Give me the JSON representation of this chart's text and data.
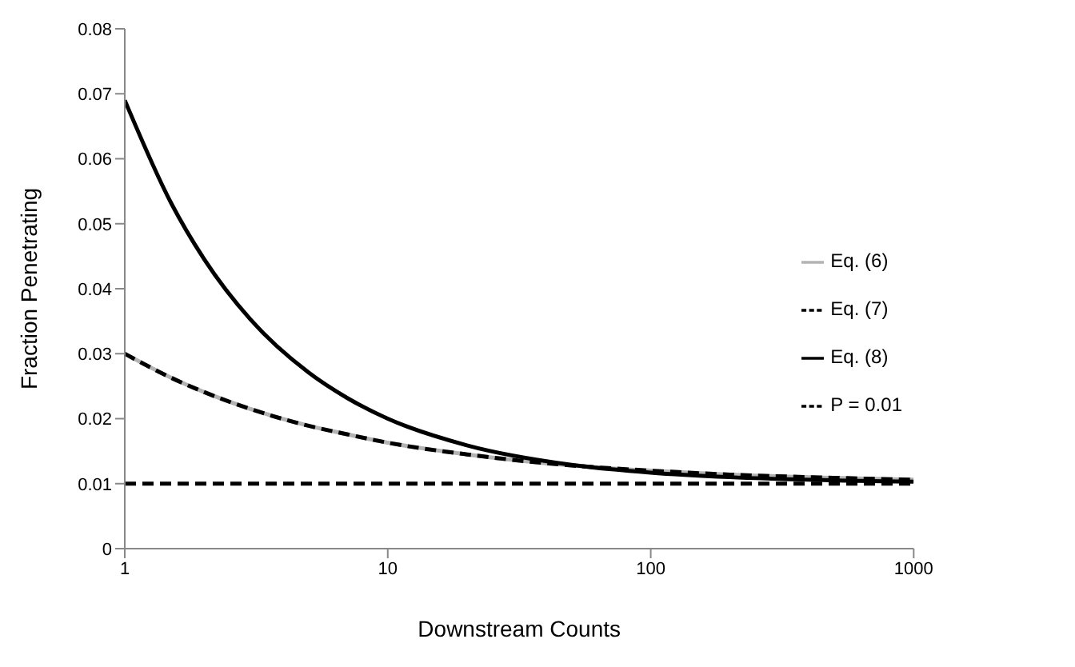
{
  "chart_data": {
    "type": "line",
    "xlabel": "Downstream Counts",
    "ylabel": "Fraction Penetrating",
    "log": "x",
    "xlim": [
      1,
      1000
    ],
    "xticks": [
      1,
      10,
      100,
      1000
    ],
    "ylim": [
      0,
      0.08
    ],
    "yticks": [
      0,
      0.01,
      0.02,
      0.03,
      0.04,
      0.05,
      0.06,
      0.07,
      0.08
    ],
    "grid": false,
    "legend": "right",
    "marker": "none",
    "x": [
      1,
      1.5,
      2,
      3,
      5,
      7,
      10,
      20,
      50,
      100,
      200,
      500,
      1000
    ],
    "series": [
      {
        "name": "Eq. (6)",
        "color": "#b3b3b3",
        "line_style": "solid",
        "values": [
          0.03,
          0.0263,
          0.0241,
          0.0215,
          0.0189,
          0.0176,
          0.0163,
          0.0145,
          0.0128,
          0.012,
          0.0114,
          0.0109,
          0.0106
        ]
      },
      {
        "name": "Eq. (7)",
        "color": "#000000",
        "line_style": "dashed",
        "values": [
          0.03,
          0.0263,
          0.0241,
          0.0215,
          0.0189,
          0.0176,
          0.0163,
          0.0145,
          0.0128,
          0.012,
          0.0114,
          0.0109,
          0.0106
        ]
      },
      {
        "name": "Eq. (8)",
        "color": "#000000",
        "line_style": "solid",
        "values": [
          0.069,
          0.0532,
          0.0446,
          0.0353,
          0.0271,
          0.0232,
          0.02,
          0.0159,
          0.0129,
          0.0117,
          0.011,
          0.0105,
          0.0103
        ]
      },
      {
        "name": "P = 0.01",
        "color": "#000000",
        "line_style": "dashed",
        "x": [
          1,
          1000
        ],
        "values": [
          0.01,
          0.01
        ]
      }
    ]
  }
}
